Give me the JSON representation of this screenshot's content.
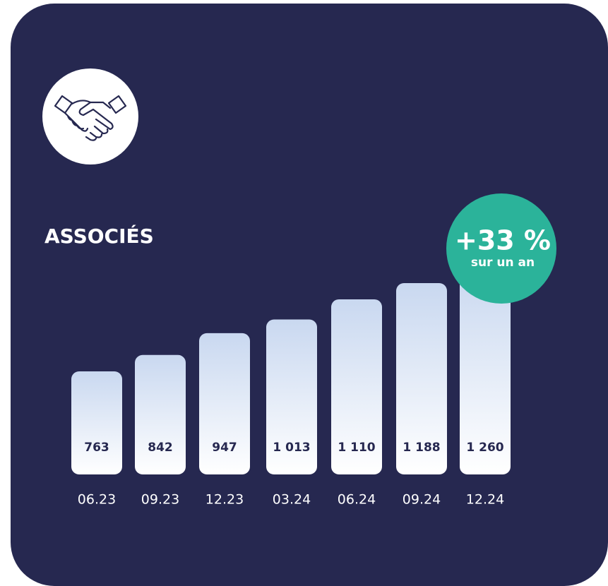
{
  "chart_data": {
    "type": "bar",
    "title": "ASSOCIÉS",
    "badge": {
      "value": "+33 %",
      "caption": "sur un an"
    },
    "categories": [
      "06.23",
      "09.23",
      "12.23",
      "03.24",
      "06.24",
      "09.24",
      "12.24"
    ],
    "values": [
      763,
      842,
      947,
      1013,
      1110,
      1188,
      1260
    ],
    "value_labels": [
      "763",
      "842",
      "947",
      "1 013",
      "1 110",
      "1 188",
      "1 260"
    ],
    "color": "#c9d8f0"
  }
}
